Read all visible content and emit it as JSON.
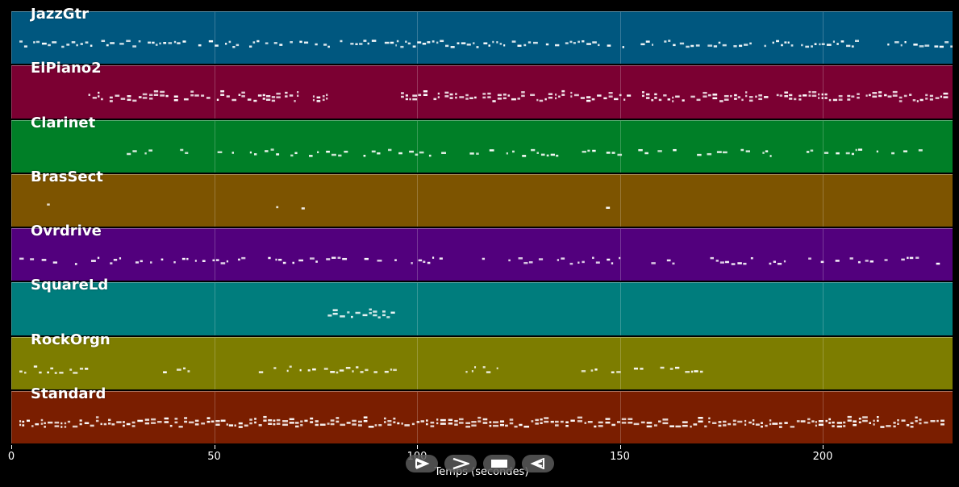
{
  "x_axis": {
    "label": "Temps (secondes)",
    "min": 0,
    "max": 232,
    "ticks": [
      0,
      50,
      100,
      150,
      200
    ]
  },
  "tracks": [
    {
      "name": "JazzGtr",
      "color": "#00577f",
      "density": 0.75,
      "segments": [
        [
          2,
          95
        ],
        [
          95,
          232
        ]
      ]
    },
    {
      "name": "ElPiano2",
      "color": "#7b0032",
      "density": 0.9,
      "segments": [
        [
          19,
          78
        ],
        [
          95,
          231
        ]
      ]
    },
    {
      "name": "Clarinet",
      "color": "#007f27",
      "density": 0.5,
      "segments": [
        [
          21,
          109
        ],
        [
          113,
          190
        ],
        [
          196,
          227
        ]
      ]
    },
    {
      "name": "BrasSect",
      "color": "#7d5400",
      "density": 0.12,
      "segments": [
        [
          3,
          17
        ],
        [
          62,
          76
        ],
        [
          138,
          152
        ]
      ]
    },
    {
      "name": "Ovrdrive",
      "color": "#52007d",
      "density": 0.55,
      "segments": [
        [
          2,
          95
        ],
        [
          95,
          230
        ]
      ]
    },
    {
      "name": "SquareLd",
      "color": "#007d7d",
      "density": 1.0,
      "segments": [
        [
          78,
          95
        ]
      ]
    },
    {
      "name": "RockOrgn",
      "color": "#7d7d00",
      "density": 0.6,
      "segments": [
        [
          2,
          19
        ],
        [
          36,
          44
        ],
        [
          61,
          95
        ],
        [
          112,
          120
        ],
        [
          137,
          171
        ]
      ]
    },
    {
      "name": "Standard",
      "color": "#7a1e00",
      "density": 1.0,
      "segments": [
        [
          2,
          230
        ]
      ]
    }
  ],
  "controls": [
    {
      "name": "play-forward",
      "icon": "play-outline-icon"
    },
    {
      "name": "fast-forward",
      "icon": "chevron-right-icon"
    },
    {
      "name": "stop",
      "icon": "stop-icon"
    },
    {
      "name": "play-reverse",
      "icon": "reverse-icon"
    }
  ]
}
